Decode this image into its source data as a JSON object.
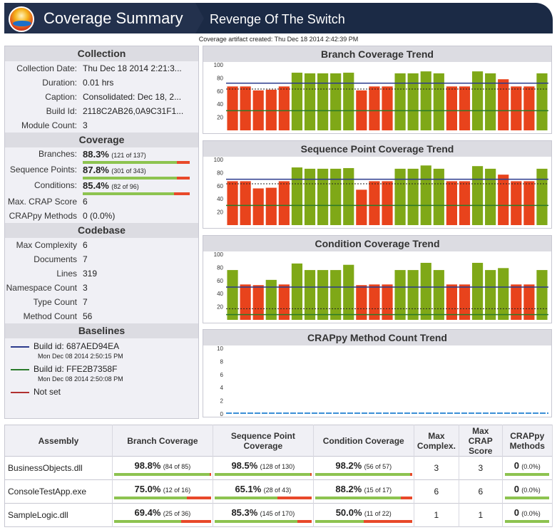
{
  "header": {
    "app_title": "Coverage Summary",
    "project": "Revenge Of The Switch",
    "created": "Coverage artifact created: Thu Dec 18 2014 2:42:39 PM"
  },
  "collection": {
    "title": "Collection",
    "rows": [
      {
        "k": "Collection Date:",
        "v": "Thu Dec 18 2014 2:21:3..."
      },
      {
        "k": "Duration:",
        "v": "0.01 hrs"
      },
      {
        "k": "Caption:",
        "v": "Consolidated: Dec 18, 2..."
      },
      {
        "k": "Build Id:",
        "v": "2118C2AB26,0A9C31F1..."
      },
      {
        "k": "Module Count:",
        "v": "3"
      }
    ]
  },
  "coverage": {
    "title": "Coverage",
    "rows": [
      {
        "k": "Branches:",
        "pct": "88.3%",
        "detail": "(121 of 137)",
        "fill": 0.883
      },
      {
        "k": "Sequence Points:",
        "pct": "87.8%",
        "detail": "(301 of 343)",
        "fill": 0.878
      },
      {
        "k": "Conditions:",
        "pct": "85.4%",
        "detail": "(82 of 96)",
        "fill": 0.854
      }
    ],
    "extra": [
      {
        "k": "Max. CRAP Score",
        "v": "6"
      },
      {
        "k": "CRAPpy Methods",
        "v": "0 (0.0%)"
      }
    ]
  },
  "codebase": {
    "title": "Codebase",
    "rows": [
      {
        "k": "Max Complexity",
        "v": "6"
      },
      {
        "k": "Documents",
        "v": "7"
      },
      {
        "k": "Lines",
        "v": "319"
      },
      {
        "k": "Namespace Count",
        "v": "3"
      },
      {
        "k": "Type Count",
        "v": "7"
      },
      {
        "k": "Method Count",
        "v": "56"
      }
    ]
  },
  "baselines": {
    "title": "Baselines",
    "items": [
      {
        "label": "Build id: 687AED94EA",
        "date": "Mon Dec 08 2014 2:50:15 PM",
        "color": "#2b3a8c"
      },
      {
        "label": "Build id: FFE2B7358F",
        "date": "Mon Dec 08 2014 2:50:08 PM",
        "color": "#2a7a2a"
      },
      {
        "label": "Not set",
        "date": "",
        "color": "#b03030"
      }
    ]
  },
  "colors": {
    "green": "#7fa817",
    "red": "#e8431c",
    "blue": "#2b3a8c",
    "darkgreen": "#2a7a2a",
    "crap": "#3b8fd6"
  },
  "chart_data": [
    {
      "type": "bar",
      "title": "Branch Coverage Trend",
      "ylim": [
        0,
        100
      ],
      "yticks": [
        "100",
        "80",
        "60",
        "40",
        "20"
      ],
      "values": [
        67,
        67,
        61,
        62,
        67,
        88,
        87,
        87,
        87,
        88,
        61,
        67,
        67,
        87,
        87,
        90,
        87,
        67,
        67,
        90,
        87,
        78,
        67,
        67,
        87
      ],
      "status": [
        "r",
        "r",
        "r",
        "r",
        "r",
        "g",
        "g",
        "g",
        "g",
        "g",
        "r",
        "r",
        "r",
        "g",
        "g",
        "g",
        "g",
        "r",
        "r",
        "g",
        "g",
        "r",
        "r",
        "r",
        "g"
      ],
      "baselines": [
        {
          "name": "Build id: 687AED94EA",
          "value": 72
        },
        {
          "name": "Build id: FFE2B7358F",
          "value": 30
        }
      ],
      "dashed": 63
    },
    {
      "type": "bar",
      "title": "Sequence Point Coverage Trend",
      "ylim": [
        0,
        100
      ],
      "yticks": [
        "100",
        "80",
        "60",
        "40",
        "20"
      ],
      "values": [
        67,
        67,
        56,
        57,
        67,
        88,
        86,
        86,
        86,
        87,
        54,
        67,
        67,
        86,
        86,
        91,
        86,
        67,
        67,
        90,
        86,
        77,
        67,
        67,
        86
      ],
      "status": [
        "r",
        "r",
        "r",
        "r",
        "r",
        "g",
        "g",
        "g",
        "g",
        "g",
        "r",
        "r",
        "r",
        "g",
        "g",
        "g",
        "g",
        "r",
        "r",
        "g",
        "g",
        "r",
        "r",
        "r",
        "g"
      ],
      "baselines": [
        {
          "name": "Build id: 687AED94EA",
          "value": 70
        },
        {
          "name": "Build id: FFE2B7358F",
          "value": 30
        }
      ],
      "dashed": 63
    },
    {
      "type": "bar",
      "title": "Condition Coverage Trend",
      "ylim": [
        0,
        100
      ],
      "yticks": [
        "100",
        "80",
        "60",
        "40",
        "20"
      ],
      "values": [
        76,
        54,
        53,
        61,
        54,
        86,
        76,
        76,
        76,
        84,
        53,
        54,
        54,
        76,
        76,
        87,
        76,
        54,
        54,
        87,
        76,
        79,
        54,
        54,
        76
      ],
      "status": [
        "g",
        "r",
        "r",
        "g",
        "r",
        "g",
        "g",
        "g",
        "g",
        "g",
        "r",
        "r",
        "r",
        "g",
        "g",
        "g",
        "g",
        "r",
        "r",
        "g",
        "g",
        "g",
        "r",
        "r",
        "g"
      ],
      "baselines": [
        {
          "name": "Build id: 687AED94EA",
          "value": 50
        },
        {
          "name": "Build id: FFE2B7358F",
          "value": 8
        }
      ],
      "dashed": 17
    },
    {
      "type": "line",
      "title": "CRAPpy Method Count Trend",
      "ylim": [
        0,
        10
      ],
      "yticks": [
        "10",
        "8",
        "6",
        "4",
        "2",
        "0"
      ],
      "values": [
        0
      ]
    }
  ],
  "table": {
    "headers": [
      "Assembly",
      "Branch Coverage",
      "Sequence Point Coverage",
      "Condition Coverage",
      "Max Complex.",
      "Max CRAP Score",
      "CRAPpy Methods"
    ],
    "rows": [
      {
        "name": "BusinessObjects.dll",
        "bc": "98.8%",
        "bcd": "(84 of 85)",
        "bcf": 0.988,
        "sp": "98.5%",
        "spd": "(128 of 130)",
        "spf": 0.985,
        "cc": "98.2%",
        "ccd": "(56 of 57)",
        "ccf": 0.982,
        "mc": "3",
        "crap": "3",
        "crappy": "0",
        "crappyd": "(0.0%)"
      },
      {
        "name": "ConsoleTestApp.exe",
        "bc": "75.0%",
        "bcd": "(12 of 16)",
        "bcf": 0.75,
        "sp": "65.1%",
        "spd": "(28 of 43)",
        "spf": 0.651,
        "cc": "88.2%",
        "ccd": "(15 of 17)",
        "ccf": 0.882,
        "mc": "6",
        "crap": "6",
        "crappy": "0",
        "crappyd": "(0.0%)"
      },
      {
        "name": "SampleLogic.dll",
        "bc": "69.4%",
        "bcd": "(25 of 36)",
        "bcf": 0.694,
        "sp": "85.3%",
        "spd": "(145 of 170)",
        "spf": 0.853,
        "cc": "50.0%",
        "ccd": "(11 of 22)",
        "ccf": 0.5,
        "mc": "1",
        "crap": "1",
        "crappy": "0",
        "crappyd": "(0.0%)"
      }
    ]
  }
}
